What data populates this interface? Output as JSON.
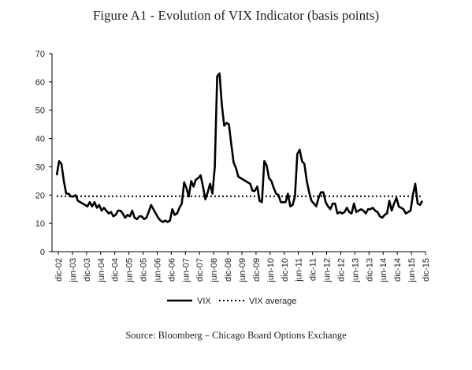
{
  "title": "Figure A1 - Evolution of VIX Indicator (basis points)",
  "source": "Source: Bloomberg – Chicago Board Options Exchange",
  "chart_data": {
    "type": "line",
    "title": "Figure A1 - Evolution of VIX Indicator (basis points)",
    "xlabel": "",
    "ylabel": "",
    "ylim": [
      0,
      70
    ],
    "yticks": [
      0,
      10,
      20,
      30,
      40,
      50,
      60,
      70
    ],
    "grid": false,
    "legend_position": "bottom",
    "x_tick_labels": [
      "dic-02",
      "jun-03",
      "dic-03",
      "jun-04",
      "dic-04",
      "jun-05",
      "dic-05",
      "jun-06",
      "dic-06",
      "jun-07",
      "dic-07",
      "jun-08",
      "dic-08",
      "jun-09",
      "dic-09",
      "jun-10",
      "dic-10",
      "jun-11",
      "dic-11",
      "jun-12",
      "dic-12",
      "jun-13",
      "dic-13",
      "jun-14",
      "dic-14",
      "jun-15",
      "dic-15"
    ],
    "series": [
      {
        "name": "VIX",
        "style": "solid",
        "color": "#000000",
        "values": [
          27,
          32,
          31,
          25,
          20.5,
          20.5,
          19.5,
          19.5,
          20,
          18,
          17.5,
          17,
          16.5,
          16,
          17.5,
          16,
          17.5,
          15.5,
          16.5,
          14.5,
          15.5,
          14.5,
          13.5,
          14,
          12.5,
          13,
          14.5,
          14.5,
          13.5,
          12,
          13,
          12.5,
          14.5,
          12,
          11.5,
          12.5,
          12.5,
          11.5,
          12,
          14,
          16.5,
          15,
          13.5,
          12,
          11,
          10.5,
          11,
          10.5,
          11,
          15,
          13,
          13.5,
          15.5,
          17,
          24.5,
          22.5,
          19.5,
          25,
          23,
          25.5,
          26,
          27,
          23,
          18.5,
          21,
          24,
          20.5,
          30,
          62,
          63,
          52,
          44.5,
          45.5,
          45,
          38,
          31.5,
          29.5,
          26.5,
          26,
          25.5,
          25,
          24.5,
          24,
          21.5,
          21.5,
          23,
          18,
          17.5,
          32,
          30.5,
          26,
          25,
          22.5,
          20.5,
          20,
          17.5,
          17.5,
          17.5,
          20.5,
          16,
          16.5,
          19.5,
          34.5,
          36,
          32,
          31,
          25,
          21,
          18,
          17,
          16,
          19,
          21,
          21,
          17.5,
          16,
          15,
          17,
          17,
          13.5,
          14,
          13.5,
          14,
          15.5,
          14,
          13.5,
          17,
          14,
          14.5,
          15,
          14.5,
          13.5,
          15,
          15,
          15.5,
          14.5,
          14,
          12.5,
          12,
          13,
          13.5,
          18,
          14.5,
          17,
          19,
          16,
          15.5,
          15,
          13.5,
          14,
          14.5,
          20,
          24,
          17,
          16.5,
          18
        ]
      },
      {
        "name": "VIX average",
        "style": "dotted",
        "color": "#000000",
        "values": [
          19.6
        ]
      }
    ]
  },
  "legend": {
    "items": [
      {
        "label": "VIX",
        "style": "solid"
      },
      {
        "label": "VIX average",
        "style": "dotted"
      }
    ]
  }
}
